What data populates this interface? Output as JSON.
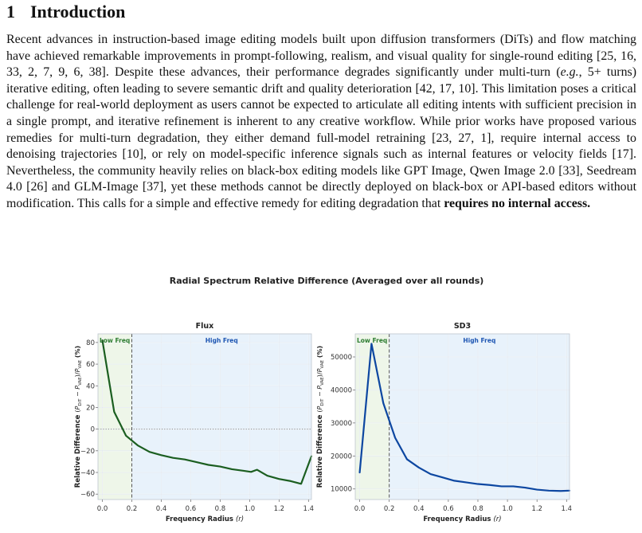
{
  "section": {
    "number": "1",
    "title": "Introduction"
  },
  "paragraph": {
    "t1": "Recent advances in instruction-based image editing models built upon diffusion transformers (DiTs) and flow matching have achieved remarkable improvements in prompt-following, realism, and visual quality for single-round editing [25, 16, 33, 2, 7, 9, 6, 38]. Despite these advances, their performance degrades significantly under multi-turn (",
    "eg": "e.g.",
    "t2": ", 5+ turns) iterative editing, often leading to severe semantic drift and quality deterioration [42, 17, 10]. This limitation poses a critical challenge for real-world deployment as users cannot be expected to articulate all editing intents with sufficient precision in a single prompt, and iterative refinement is inherent to any creative workflow. While prior works have proposed various remedies for multi-turn degradation, they either demand full-model retraining [23, 27, 1], require internal access to denoising trajectories [10], or rely on model-specific inference signals such as internal features or velocity fields [17]. Nevertheless, the community heavily relies on black-box editing models like GPT Image, Qwen Image 2.0 [33], Seedream 4.0 [26] and GLM-Image [37], yet these methods cannot be directly deployed on black-box or API-based editors without modification. This calls for a simple and effective remedy for editing degradation that ",
    "bold_end": "requires no internal access."
  },
  "figure": {
    "suptitle": "Radial Spectrum Relative Difference (Averaged over all rounds)",
    "colors": {
      "low_band": "#eef6e9",
      "high_band": "#e8f2fb",
      "low_text": "#2e7d32",
      "high_text": "#1f57b3",
      "flux_line": "#1b5e20",
      "sd3_line": "#0d47a1"
    },
    "chart_data": [
      {
        "type": "line",
        "title": "Flux",
        "xlabel": "Frequency Radius",
        "xlabel_var": "(r)",
        "ylabel": "Relative Difference",
        "xlim": [
          -0.03,
          1.42
        ],
        "ylim": [
          -65,
          88
        ],
        "xticks": [
          0.0,
          0.2,
          0.4,
          0.6,
          0.8,
          1.0,
          1.2,
          1.4
        ],
        "xtick_labels": [
          "0.0",
          "0.2",
          "0.4",
          "0.6",
          "0.8",
          "1.0",
          "1.2",
          "1.4"
        ],
        "yticks": [
          -60,
          -40,
          -20,
          0,
          20,
          40,
          60,
          80
        ],
        "ytick_labels": [
          "−60",
          "−40",
          "−20",
          "0",
          "20",
          "40",
          "60",
          "80"
        ],
        "cutoff": 0.2,
        "zero_line": true,
        "grid": true,
        "band_labels": [
          "Low Freq",
          "High Freq"
        ],
        "x": [
          0.0,
          0.08,
          0.16,
          0.24,
          0.32,
          0.4,
          0.48,
          0.56,
          0.64,
          0.72,
          0.8,
          0.88,
          0.96,
          1.01,
          1.05,
          1.12,
          1.2,
          1.28,
          1.35,
          1.42
        ],
        "y": [
          82,
          16,
          -6,
          -15,
          -21,
          -24,
          -26.5,
          -28,
          -30.5,
          -33,
          -34.5,
          -37,
          -38.5,
          -39.5,
          -37.5,
          -43,
          -46,
          -48,
          -50.5,
          -25
        ]
      },
      {
        "type": "line",
        "title": "SD3",
        "xlabel": "Frequency Radius",
        "xlabel_var": "(r)",
        "ylabel": "Relative Difference",
        "xlim": [
          -0.03,
          1.42
        ],
        "ylim": [
          6800,
          57000
        ],
        "xticks": [
          0.0,
          0.2,
          0.4,
          0.6,
          0.8,
          1.0,
          1.2,
          1.4
        ],
        "xtick_labels": [
          "0.0",
          "0.2",
          "0.4",
          "0.6",
          "0.8",
          "1.0",
          "1.2",
          "1.4"
        ],
        "yticks": [
          10000,
          20000,
          30000,
          40000,
          50000
        ],
        "ytick_labels": [
          "10000",
          "20000",
          "30000",
          "40000",
          "50000"
        ],
        "cutoff": 0.2,
        "zero_line": false,
        "grid": true,
        "band_labels": [
          "Low Freq",
          "High Freq"
        ],
        "x": [
          0.0,
          0.08,
          0.16,
          0.24,
          0.32,
          0.4,
          0.48,
          0.56,
          0.64,
          0.72,
          0.8,
          0.88,
          0.96,
          1.04,
          1.12,
          1.2,
          1.28,
          1.36,
          1.42
        ],
        "y": [
          15000,
          54000,
          36000,
          25500,
          19000,
          16500,
          14500,
          13500,
          12500,
          12000,
          11500,
          11200,
          10800,
          10800,
          10400,
          9800,
          9500,
          9400,
          9500
        ]
      }
    ]
  }
}
